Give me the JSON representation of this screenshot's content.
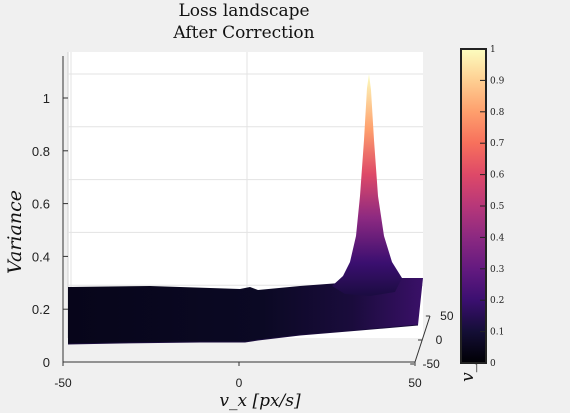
{
  "chart_data": {
    "type": "surface",
    "title": [
      "Loss landscape",
      "After Correction"
    ],
    "xlabel": "v_x [px/s]",
    "ylabel": "v_y",
    "zlabel": "Variance",
    "xlim": [
      -50,
      50
    ],
    "ylim": [
      -50,
      50
    ],
    "zlim": [
      0,
      1.1
    ],
    "x_ticks": [
      -50,
      0,
      50
    ],
    "y_ticks": [
      -50,
      0,
      50
    ],
    "z_ticks": [
      0,
      0.2,
      0.4,
      0.6,
      0.8,
      1
    ],
    "grid": true,
    "colormap": "magma",
    "colorbar_ticks": [
      0,
      0.1,
      0.2,
      0.3,
      0.4,
      0.5,
      0.6,
      0.7,
      0.8,
      0.9,
      1
    ],
    "surface": {
      "baseline_variance": 0.2,
      "peak": {
        "vx": 35,
        "vy": 0,
        "variance": 1.1
      }
    }
  }
}
